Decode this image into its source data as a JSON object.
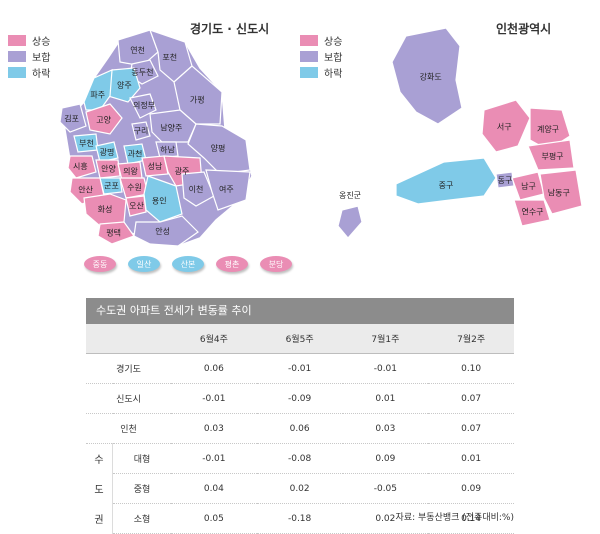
{
  "legend": [
    {
      "label": "상승",
      "color": "#ea8db4"
    },
    {
      "label": "보합",
      "color": "#a9a0d4"
    },
    {
      "label": "하락",
      "color": "#7fcae8"
    }
  ],
  "gyeonggi": {
    "title": "경기도 · 신도시",
    "regions": [
      {
        "name": "연천",
        "status": "보합"
      },
      {
        "name": "포천",
        "status": "보합"
      },
      {
        "name": "동두천",
        "status": "보합"
      },
      {
        "name": "양주",
        "status": "하락"
      },
      {
        "name": "파주",
        "status": "하락"
      },
      {
        "name": "의정부",
        "status": "보합"
      },
      {
        "name": "가평",
        "status": "보합"
      },
      {
        "name": "김포",
        "status": "보합"
      },
      {
        "name": "고양",
        "status": "상승"
      },
      {
        "name": "구리",
        "status": "보합"
      },
      {
        "name": "남양주",
        "status": "보합"
      },
      {
        "name": "하남",
        "status": "보합"
      },
      {
        "name": "부천",
        "status": "하락"
      },
      {
        "name": "광명",
        "status": "하락"
      },
      {
        "name": "과천",
        "status": "하락"
      },
      {
        "name": "성남",
        "status": "상승"
      },
      {
        "name": "양평",
        "status": "보합"
      },
      {
        "name": "시흥",
        "status": "상승"
      },
      {
        "name": "안양",
        "status": "상승"
      },
      {
        "name": "의왕",
        "status": "상승"
      },
      {
        "name": "광주",
        "status": "상승"
      },
      {
        "name": "군포",
        "status": "하락"
      },
      {
        "name": "안산",
        "status": "상승"
      },
      {
        "name": "수원",
        "status": "상승"
      },
      {
        "name": "용인",
        "status": "하락"
      },
      {
        "name": "이천",
        "status": "보합"
      },
      {
        "name": "여주",
        "status": "보합"
      },
      {
        "name": "화성",
        "status": "상승"
      },
      {
        "name": "오산",
        "status": "상승"
      },
      {
        "name": "평택",
        "status": "상승"
      },
      {
        "name": "안성",
        "status": "보합"
      }
    ],
    "new_towns": [
      {
        "name": "중동",
        "status": "상승"
      },
      {
        "name": "일산",
        "status": "하락"
      },
      {
        "name": "산본",
        "status": "하락"
      },
      {
        "name": "평촌",
        "status": "상승"
      },
      {
        "name": "분당",
        "status": "상승"
      }
    ]
  },
  "incheon": {
    "title": "인천광역시",
    "regions": [
      {
        "name": "강화도",
        "status": "보합"
      },
      {
        "name": "서구",
        "status": "상승"
      },
      {
        "name": "계양구",
        "status": "상승"
      },
      {
        "name": "부평구",
        "status": "상승"
      },
      {
        "name": "중구",
        "status": "하락"
      },
      {
        "name": "동구",
        "status": "보합"
      },
      {
        "name": "남구",
        "status": "상승"
      },
      {
        "name": "남동구",
        "status": "상승"
      },
      {
        "name": "연수구",
        "status": "상승"
      },
      {
        "name": "옹진군",
        "status": "보합"
      }
    ]
  },
  "chart_data": {
    "type": "table",
    "title": "수도권 아파트 전세가 변동률 추이",
    "columns": [
      "6월4주",
      "6월5주",
      "7월1주",
      "7월2주"
    ],
    "rows": [
      {
        "label": "경기도",
        "values": [
          "0.06",
          "-0.01",
          "-0.01",
          "0.10"
        ]
      },
      {
        "label": "신도시",
        "values": [
          "-0.01",
          "-0.09",
          "0.01",
          "0.07"
        ]
      },
      {
        "label": "인천",
        "values": [
          "0.03",
          "0.06",
          "0.03",
          "0.07"
        ]
      },
      {
        "group": "수도권",
        "label": "대형",
        "values": [
          "-0.01",
          "-0.08",
          "0.09",
          "0.01"
        ]
      },
      {
        "group": "수도권",
        "label": "중형",
        "values": [
          "0.04",
          "0.02",
          "-0.05",
          "0.09"
        ]
      },
      {
        "group": "수도권",
        "label": "소형",
        "values": [
          "0.05",
          "-0.18",
          "0.02",
          "0.14"
        ]
      }
    ],
    "group_chars": [
      "수",
      "도",
      "권"
    ],
    "source": "자료: 부동산뱅크 (전주대비:%)"
  }
}
